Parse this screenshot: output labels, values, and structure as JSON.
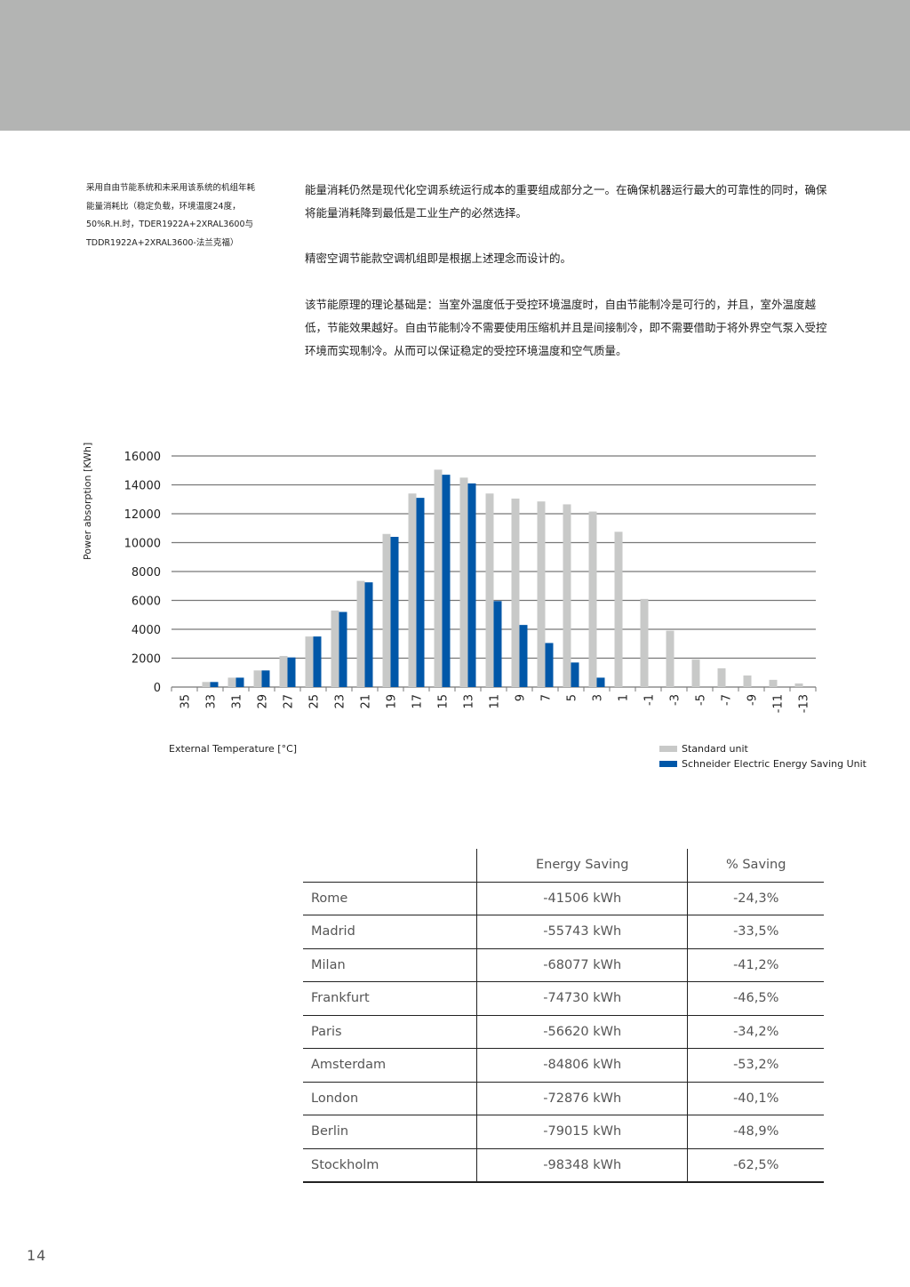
{
  "caption": "采用自由节能系统和未采用该系统的机组年耗能量消耗比（稳定负载，环境温度24度，50%R.H.时，TDER1922A+2XRAL3600与TDDR1922A+2XRAL3600-法兰克福）",
  "paragraphs": [
    "能量消耗仍然是现代化空调系统运行成本的重要组成部分之一。在确保机器运行最大的可靠性的同时，确保将能量消耗降到最低是工业生产的必然选择。",
    "精密空调节能款空调机组即是根据上述理念而设计的。",
    "该节能原理的理论基础是：当室外温度低于受控环境温度时，自由节能制冷是可行的，并且，室外温度越低，节能效果越好。自由节能制冷不需要使用压缩机并且是间接制冷，即不需要借助于将外界空气泵入受控环境而实现制冷。从而可以保证稳定的受控环境温度和空气质量。"
  ],
  "chart_data": {
    "type": "bar",
    "xlabel": "External Temperature [°C]",
    "ylabel": "Power absorption [KWh]",
    "ylim": [
      0,
      16000
    ],
    "yticks": [
      0,
      2000,
      4000,
      6000,
      8000,
      10000,
      12000,
      14000,
      16000
    ],
    "grid": true,
    "legend_position": "bottom-right",
    "categories": [
      "35",
      "33",
      "31",
      "29",
      "27",
      "25",
      "23",
      "21",
      "19",
      "17",
      "15",
      "13",
      "11",
      "9",
      "7",
      "5",
      "3",
      "1",
      "-1",
      "-3",
      "-5",
      "-7",
      "-9",
      "-11",
      "-13"
    ],
    "series": [
      {
        "name": "Standard unit",
        "color": "#c8c9c8",
        "values": [
          0,
          350,
          650,
          1150,
          2150,
          3500,
          5300,
          7350,
          10600,
          13400,
          15050,
          14500,
          13400,
          13050,
          12850,
          12650,
          12150,
          10750,
          6100,
          3900,
          1900,
          1300,
          800,
          500,
          250
        ]
      },
      {
        "name": "Schneider Electric Energy Saving Unit",
        "color": "#0057a8",
        "values": [
          0,
          350,
          650,
          1150,
          2050,
          3500,
          5200,
          7250,
          10400,
          13100,
          14700,
          14100,
          5950,
          4300,
          3050,
          1700,
          650,
          0,
          0,
          0,
          0,
          0,
          0,
          0,
          0
        ]
      }
    ]
  },
  "table": {
    "headers": [
      "",
      "Energy Saving",
      "% Saving"
    ],
    "rows": [
      [
        "Rome",
        "-41506 kWh",
        "-24,3%"
      ],
      [
        "Madrid",
        "-55743 kWh",
        "-33,5%"
      ],
      [
        "Milan",
        "-68077 kWh",
        "-41,2%"
      ],
      [
        "Frankfurt",
        "-74730 kWh",
        "-46,5%"
      ],
      [
        "Paris",
        "-56620 kWh",
        "-34,2%"
      ],
      [
        "Amsterdam",
        "-84806 kWh",
        "-53,2%"
      ],
      [
        "London",
        "-72876 kWh",
        "-40,1%"
      ],
      [
        "Berlin",
        "-79015 kWh",
        "-48,9%"
      ],
      [
        "Stockholm",
        "-98348 kWh",
        "-62,5%"
      ]
    ]
  },
  "page_number": "14"
}
